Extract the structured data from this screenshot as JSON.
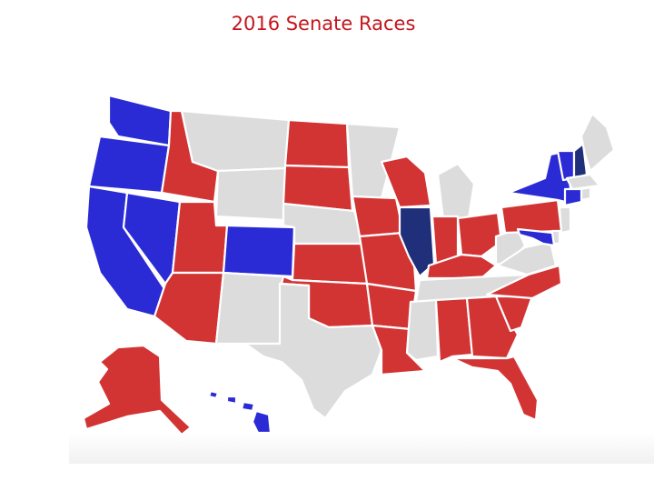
{
  "title": "2016 Senate Races",
  "colors": {
    "republican": "#d23434",
    "democrat": "#2b2bd6",
    "no_race": "#dcdcdc",
    "flip": "#1f2f7a",
    "title": "#c4161c"
  },
  "states": {
    "WA": "democrat",
    "OR": "democrat",
    "CA": "democrat",
    "NV": "democrat",
    "ID": "republican",
    "MT": "no_race",
    "WY": "no_race",
    "UT": "republican",
    "AZ": "republican",
    "CO": "democrat",
    "NM": "no_race",
    "ND": "republican",
    "SD": "republican",
    "NE": "no_race",
    "KS": "republican",
    "OK": "republican",
    "TX": "no_race",
    "MN": "no_race",
    "IA": "republican",
    "MO": "republican",
    "AR": "republican",
    "LA": "republican",
    "WI": "republican",
    "IL": "flip",
    "MI": "no_race",
    "IN": "republican",
    "OH": "republican",
    "KY": "republican",
    "TN": "no_race",
    "MS": "no_race",
    "AL": "republican",
    "GA": "republican",
    "FL": "republican",
    "SC": "republican",
    "NC": "republican",
    "VA": "no_race",
    "WV": "no_race",
    "PA": "republican",
    "NY": "democrat",
    "VT": "democrat",
    "NH": "flip",
    "ME": "no_race",
    "MA": "no_race",
    "CT": "democrat",
    "RI": "no_race",
    "NJ": "no_race",
    "DE": "no_race",
    "MD": "democrat",
    "AK": "republican",
    "HI": "democrat"
  }
}
